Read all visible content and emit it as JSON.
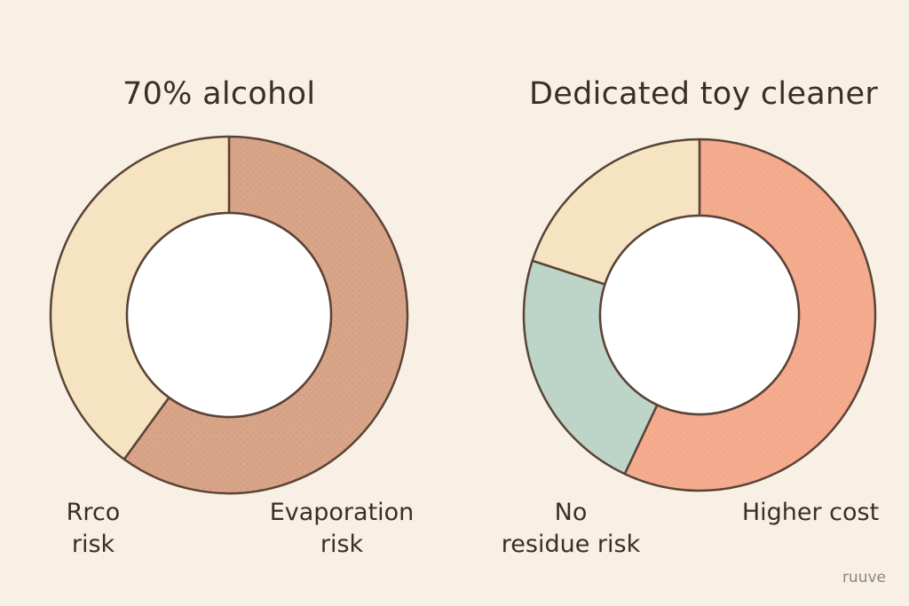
{
  "chart_data": [
    {
      "type": "pie",
      "title": "70% alcohol",
      "slices": [
        {
          "label": "Evaporation risk",
          "value": 60,
          "color": "#d9a588"
        },
        {
          "label": "Rrco risk",
          "value": 40,
          "color": "#f5e3c2"
        }
      ],
      "visible_labels": [
        [
          "Rrco",
          "risk"
        ],
        [
          "Evaporation",
          "risk"
        ]
      ]
    },
    {
      "type": "pie",
      "title": "Dedicated toy cleaner",
      "slices": [
        {
          "label": "Higher cost",
          "value": 57,
          "color": "#f4ab8e"
        },
        {
          "label": "No residue risk",
          "value": 23,
          "color": "#bcd5c8"
        },
        {
          "label": "",
          "value": 20,
          "color": "#f5e3c2"
        }
      ],
      "visible_labels": [
        [
          "No",
          "residue risk"
        ],
        [
          "Higher cost"
        ]
      ]
    }
  ],
  "watermark": "ruuve",
  "style": {
    "background": "#f8f0e4",
    "outline": "#5a4337",
    "hole": "#ffffff"
  }
}
